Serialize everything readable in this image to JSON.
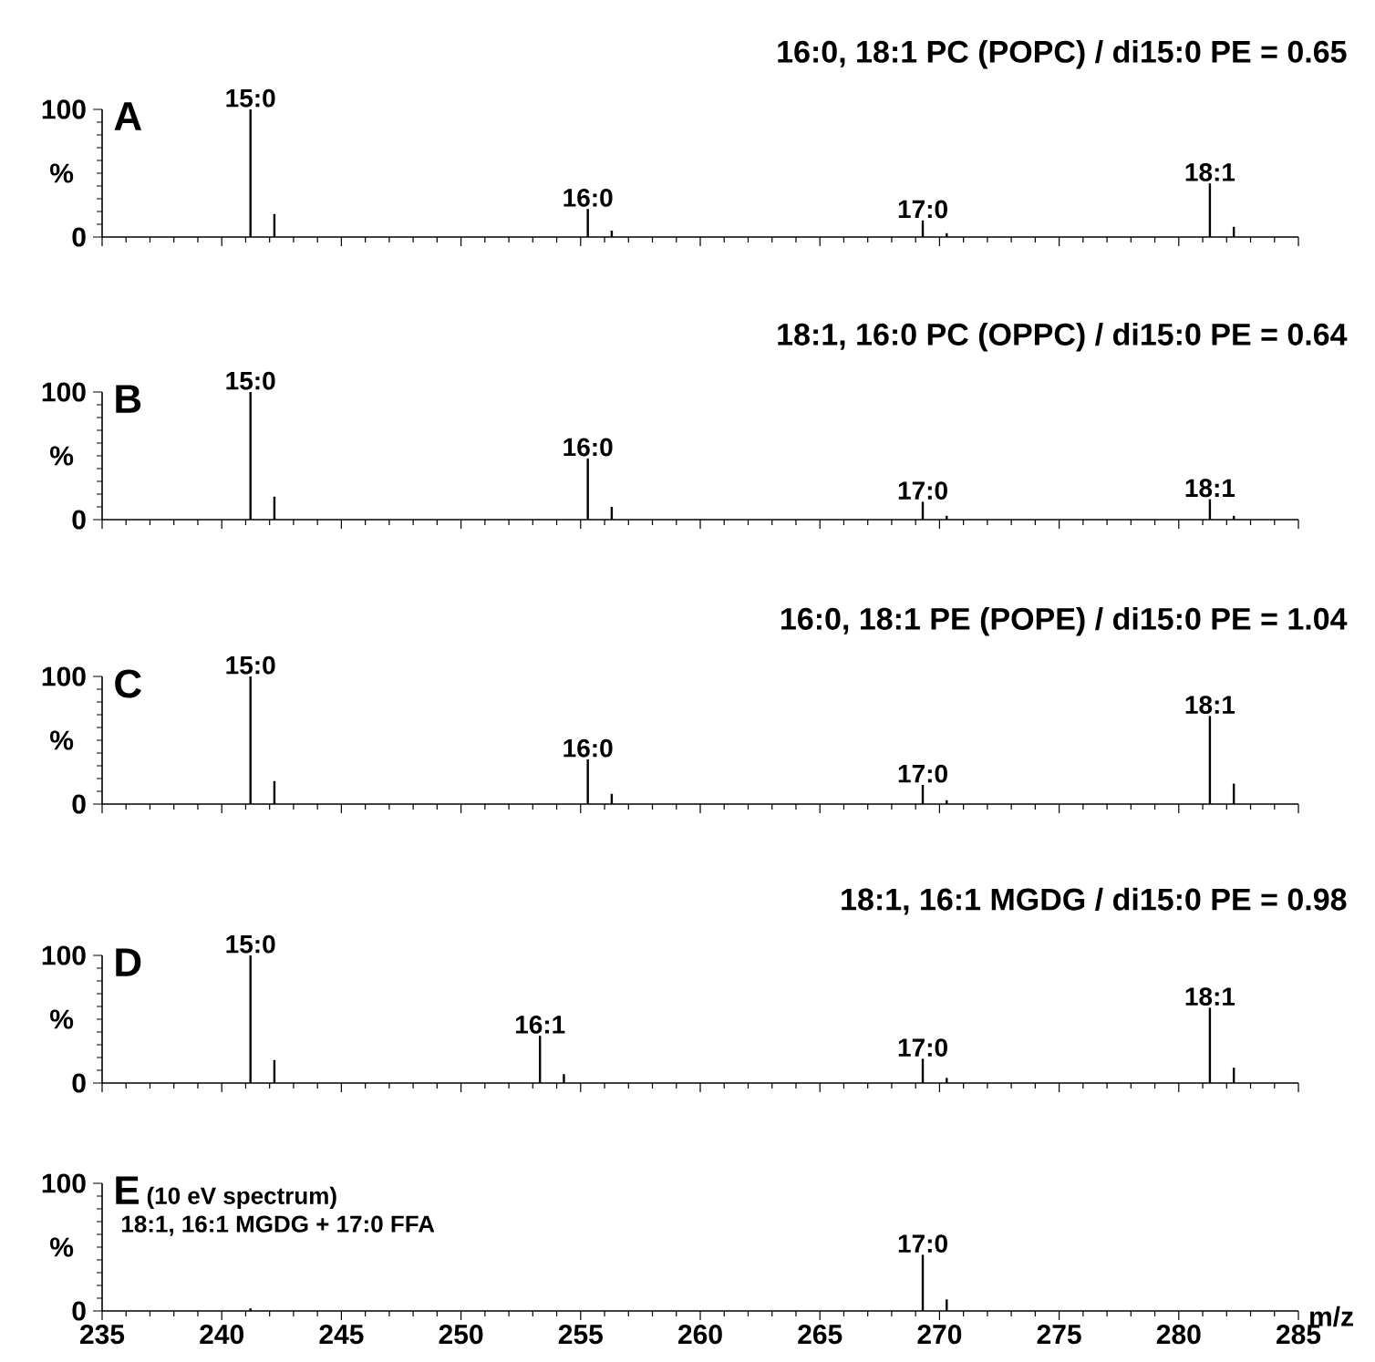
{
  "chart_data": [
    {
      "type": "bar",
      "title": "16:0, 18:1 PC (POPC) / di15:0 PE = 0.65",
      "ylabel": "%",
      "color": "#000000",
      "x": [
        241.2,
        242.2,
        255.3,
        256.3,
        269.3,
        270.3,
        281.3,
        282.3
      ],
      "values": [
        100,
        18,
        22,
        5,
        13,
        3,
        42,
        8
      ],
      "xlim": [
        235,
        285
      ],
      "xticks": [
        235,
        240,
        245,
        250,
        255,
        260,
        265,
        270,
        275,
        280,
        285
      ],
      "ylim": [
        0,
        100
      ],
      "yticks": [
        0,
        100
      ],
      "tick_labels": "y",
      "annotations": [
        "A",
        {
          "text": "15:0",
          "x": 241.2,
          "y": 100
        },
        {
          "text": "16:0",
          "x": 255.3,
          "y": 22
        },
        {
          "text": "17:0",
          "x": 269.3,
          "y": 13
        },
        {
          "text": "18:1",
          "x": 281.3,
          "y": 42
        }
      ]
    },
    {
      "type": "bar",
      "title": "18:1, 16:0 PC (OPPC) / di15:0 PE = 0.64",
      "ylabel": "%",
      "color": "#000000",
      "x": [
        241.2,
        242.2,
        255.3,
        256.3,
        269.3,
        270.3,
        281.3,
        282.3
      ],
      "values": [
        100,
        18,
        48,
        10,
        14,
        3,
        16,
        3
      ],
      "xlim": [
        235,
        285
      ],
      "xticks": [
        235,
        240,
        245,
        250,
        255,
        260,
        265,
        270,
        275,
        280,
        285
      ],
      "ylim": [
        0,
        100
      ],
      "yticks": [
        0,
        100
      ],
      "tick_labels": "y",
      "annotations": [
        "B",
        {
          "text": "15:0",
          "x": 241.2,
          "y": 100
        },
        {
          "text": "16:0",
          "x": 255.3,
          "y": 48
        },
        {
          "text": "17:0",
          "x": 269.3,
          "y": 14
        },
        {
          "text": "18:1",
          "x": 281.3,
          "y": 16
        }
      ]
    },
    {
      "type": "bar",
      "title": "16:0, 18:1 PE (POPE) / di15:0 PE = 1.04",
      "ylabel": "%",
      "color": "#000000",
      "x": [
        241.2,
        242.2,
        255.3,
        256.3,
        269.3,
        270.3,
        281.3,
        282.3
      ],
      "values": [
        100,
        18,
        35,
        8,
        15,
        3,
        69,
        16
      ],
      "xlim": [
        235,
        285
      ],
      "xticks": [
        235,
        240,
        245,
        250,
        255,
        260,
        265,
        270,
        275,
        280,
        285
      ],
      "ylim": [
        0,
        100
      ],
      "yticks": [
        0,
        100
      ],
      "tick_labels": "y",
      "annotations": [
        "C",
        {
          "text": "15:0",
          "x": 241.2,
          "y": 100
        },
        {
          "text": "16:0",
          "x": 255.3,
          "y": 35
        },
        {
          "text": "17:0",
          "x": 269.3,
          "y": 15
        },
        {
          "text": "18:1",
          "x": 281.3,
          "y": 69
        }
      ]
    },
    {
      "type": "bar",
      "title": "18:1, 16:1 MGDG / di15:0 PE = 0.98",
      "ylabel": "%",
      "color": "#000000",
      "x": [
        241.2,
        242.2,
        253.3,
        254.3,
        269.3,
        270.3,
        281.3,
        282.3
      ],
      "values": [
        100,
        18,
        37,
        7,
        19,
        4,
        59,
        12
      ],
      "xlim": [
        235,
        285
      ],
      "xticks": [
        235,
        240,
        245,
        250,
        255,
        260,
        265,
        270,
        275,
        280,
        285
      ],
      "ylim": [
        0,
        100
      ],
      "yticks": [
        0,
        100
      ],
      "tick_labels": "y",
      "annotations": [
        "D",
        {
          "text": "15:0",
          "x": 241.2,
          "y": 100
        },
        {
          "text": "16:1",
          "x": 253.3,
          "y": 37
        },
        {
          "text": "17:0",
          "x": 269.3,
          "y": 19
        },
        {
          "text": "18:1",
          "x": 281.3,
          "y": 59
        }
      ]
    },
    {
      "type": "bar",
      "ylabel": "%",
      "xlabel": "m/z",
      "color": "#000000",
      "x": [
        241.2,
        269.3,
        270.3
      ],
      "values": [
        2,
        44,
        9
      ],
      "xlim": [
        235,
        285
      ],
      "xticks": [
        235,
        240,
        245,
        250,
        255,
        260,
        265,
        270,
        275,
        280,
        285
      ],
      "ylim": [
        0,
        100
      ],
      "yticks": [
        0,
        100
      ],
      "annotations": [
        "E",
        "(10 eV spectrum)",
        "18:1, 16:1 MGDG + 17:0 FFA",
        {
          "text": "17:0",
          "x": 269.3,
          "y": 44
        }
      ]
    }
  ]
}
